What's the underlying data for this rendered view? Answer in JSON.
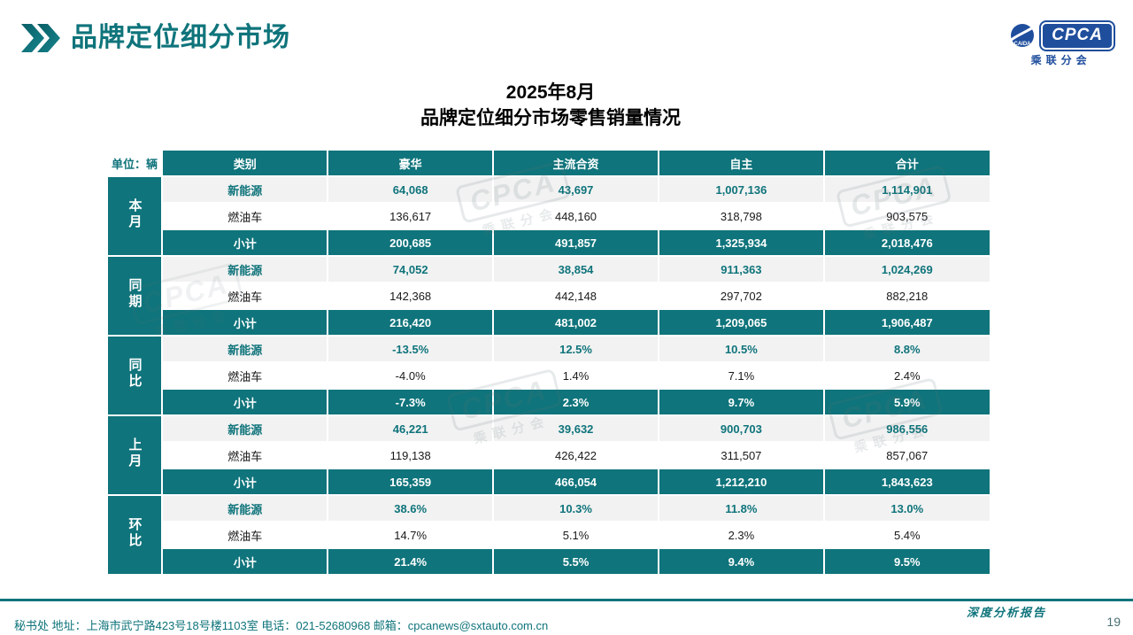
{
  "header": {
    "title": "品牌定位细分市场",
    "logo": {
      "main": "CPCA",
      "sub": "乘联分会",
      "inner": "CAIDA"
    }
  },
  "table": {
    "title_line1": "2025年8月",
    "title_line2": "品牌定位细分市场零售销量情况",
    "unit_label": "单位：辆",
    "columns": [
      "类别",
      "豪华",
      "主流合资",
      "自主",
      "合计"
    ],
    "groups": [
      {
        "key": "this-month",
        "label": "本月",
        "rows": [
          {
            "type": "nev",
            "label": "新能源",
            "values": [
              "64,068",
              "43,697",
              "1,007,136",
              "1,114,901"
            ]
          },
          {
            "type": "fuel",
            "label": "燃油车",
            "values": [
              "136,617",
              "448,160",
              "318,798",
              "903,575"
            ]
          },
          {
            "type": "subtotal",
            "label": "小计",
            "values": [
              "200,685",
              "491,857",
              "1,325,934",
              "2,018,476"
            ]
          }
        ]
      },
      {
        "key": "same-period",
        "label": "同期",
        "rows": [
          {
            "type": "nev",
            "label": "新能源",
            "values": [
              "74,052",
              "38,854",
              "911,363",
              "1,024,269"
            ]
          },
          {
            "type": "fuel",
            "label": "燃油车",
            "values": [
              "142,368",
              "442,148",
              "297,702",
              "882,218"
            ]
          },
          {
            "type": "subtotal",
            "label": "小计",
            "values": [
              "216,420",
              "481,002",
              "1,209,065",
              "1,906,487"
            ]
          }
        ]
      },
      {
        "key": "yoy",
        "label": "同比",
        "rows": [
          {
            "type": "nev",
            "label": "新能源",
            "values": [
              "-13.5%",
              "12.5%",
              "10.5%",
              "8.8%"
            ]
          },
          {
            "type": "fuel",
            "label": "燃油车",
            "values": [
              "-4.0%",
              "1.4%",
              "7.1%",
              "2.4%"
            ]
          },
          {
            "type": "subtotal",
            "label": "小计",
            "values": [
              "-7.3%",
              "2.3%",
              "9.7%",
              "5.9%"
            ]
          }
        ]
      },
      {
        "key": "last-month",
        "label": "上月",
        "rows": [
          {
            "type": "nev",
            "label": "新能源",
            "values": [
              "46,221",
              "39,632",
              "900,703",
              "986,556"
            ]
          },
          {
            "type": "fuel",
            "label": "燃油车",
            "values": [
              "119,138",
              "426,422",
              "311,507",
              "857,067"
            ]
          },
          {
            "type": "subtotal",
            "label": "小计",
            "values": [
              "165,359",
              "466,054",
              "1,212,210",
              "1,843,623"
            ]
          }
        ]
      },
      {
        "key": "mom",
        "label": "环比",
        "rows": [
          {
            "type": "nev",
            "label": "新能源",
            "values": [
              "38.6%",
              "10.3%",
              "11.8%",
              "13.0%"
            ]
          },
          {
            "type": "fuel",
            "label": "燃油车",
            "values": [
              "14.7%",
              "5.1%",
              "2.3%",
              "5.4%"
            ]
          },
          {
            "type": "subtotal",
            "label": "小计",
            "values": [
              "21.4%",
              "5.5%",
              "9.4%",
              "9.5%"
            ]
          }
        ]
      }
    ]
  },
  "watermark": {
    "line1": "CPCA",
    "line2": "乘联分会"
  },
  "footer": {
    "info": "秘书处   地址：上海市武宁路423号18号楼1103室 电话：021-52680968   邮箱：cpcanews@sxtauto.com.cn",
    "report_tag": "深度分析报告",
    "page_number": "19"
  },
  "colors": {
    "teal": "#0F747B",
    "blue": "#1F4E9D",
    "row_alt": "#F2F2F2"
  }
}
